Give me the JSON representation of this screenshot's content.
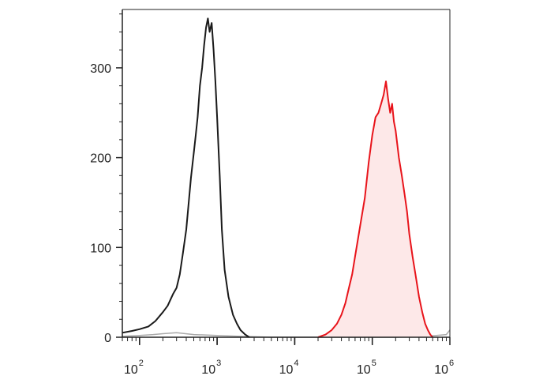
{
  "chart_data": {
    "type": "line",
    "title": "",
    "xlabel": "",
    "ylabel": "",
    "x_scale": "log",
    "xlim": [
      60,
      1000000
    ],
    "ylim": [
      0,
      365
    ],
    "grid": false,
    "legend": "none",
    "y_ticks": [
      {
        "value": 0,
        "label": "0"
      },
      {
        "value": 100,
        "label": "100"
      },
      {
        "value": 200,
        "label": "200"
      },
      {
        "value": 300,
        "label": "300"
      }
    ],
    "x_ticks": [
      {
        "value": 100,
        "base": "10",
        "exp": "2"
      },
      {
        "value": 1000,
        "base": "10",
        "exp": "3"
      },
      {
        "value": 10000,
        "base": "10",
        "exp": "4"
      },
      {
        "value": 100000,
        "base": "10",
        "exp": "5"
      },
      {
        "value": 1000000,
        "base": "10",
        "exp": "6"
      }
    ],
    "series": [
      {
        "color": "#aaaaaa",
        "fill": "none",
        "x": [
          60,
          100,
          150,
          200,
          300,
          500,
          1000,
          2000,
          5000,
          10000,
          50000,
          200000,
          500000,
          900000,
          1000000
        ],
        "y": [
          1,
          2,
          3,
          4,
          5,
          3,
          2,
          1,
          0,
          0,
          0,
          0,
          1,
          3,
          8
        ]
      },
      {
        "color": "#1a1a1a",
        "fill": "none",
        "x": [
          60,
          80,
          100,
          130,
          160,
          200,
          230,
          270,
          300,
          330,
          360,
          400,
          430,
          460,
          500,
          530,
          560,
          600,
          640,
          680,
          720,
          760,
          800,
          850,
          900,
          950,
          1000,
          1080,
          1150,
          1250,
          1400,
          1600,
          1800,
          2000,
          2300,
          2600
        ],
        "y": [
          5,
          7,
          9,
          12,
          18,
          28,
          35,
          48,
          55,
          70,
          92,
          120,
          150,
          178,
          205,
          225,
          245,
          280,
          300,
          325,
          345,
          355,
          340,
          350,
          320,
          285,
          245,
          180,
          120,
          75,
          45,
          25,
          15,
          8,
          3,
          0
        ]
      },
      {
        "color": "#e8141b",
        "fill": "#fde8e8",
        "x": [
          20000,
          25000,
          30000,
          35000,
          40000,
          45000,
          50000,
          55000,
          60000,
          70000,
          80000,
          90000,
          100000,
          110000,
          120000,
          130000,
          140000,
          150000,
          160000,
          170000,
          180000,
          190000,
          200000,
          220000,
          240000,
          260000,
          280000,
          300000,
          330000,
          360000,
          400000,
          440000,
          480000,
          520000,
          560000,
          600000
        ],
        "y": [
          0,
          3,
          8,
          15,
          25,
          38,
          55,
          70,
          90,
          125,
          155,
          195,
          225,
          245,
          250,
          260,
          270,
          285,
          265,
          250,
          260,
          240,
          230,
          200,
          180,
          160,
          140,
          115,
          90,
          70,
          45,
          28,
          15,
          8,
          3,
          0
        ]
      }
    ]
  }
}
